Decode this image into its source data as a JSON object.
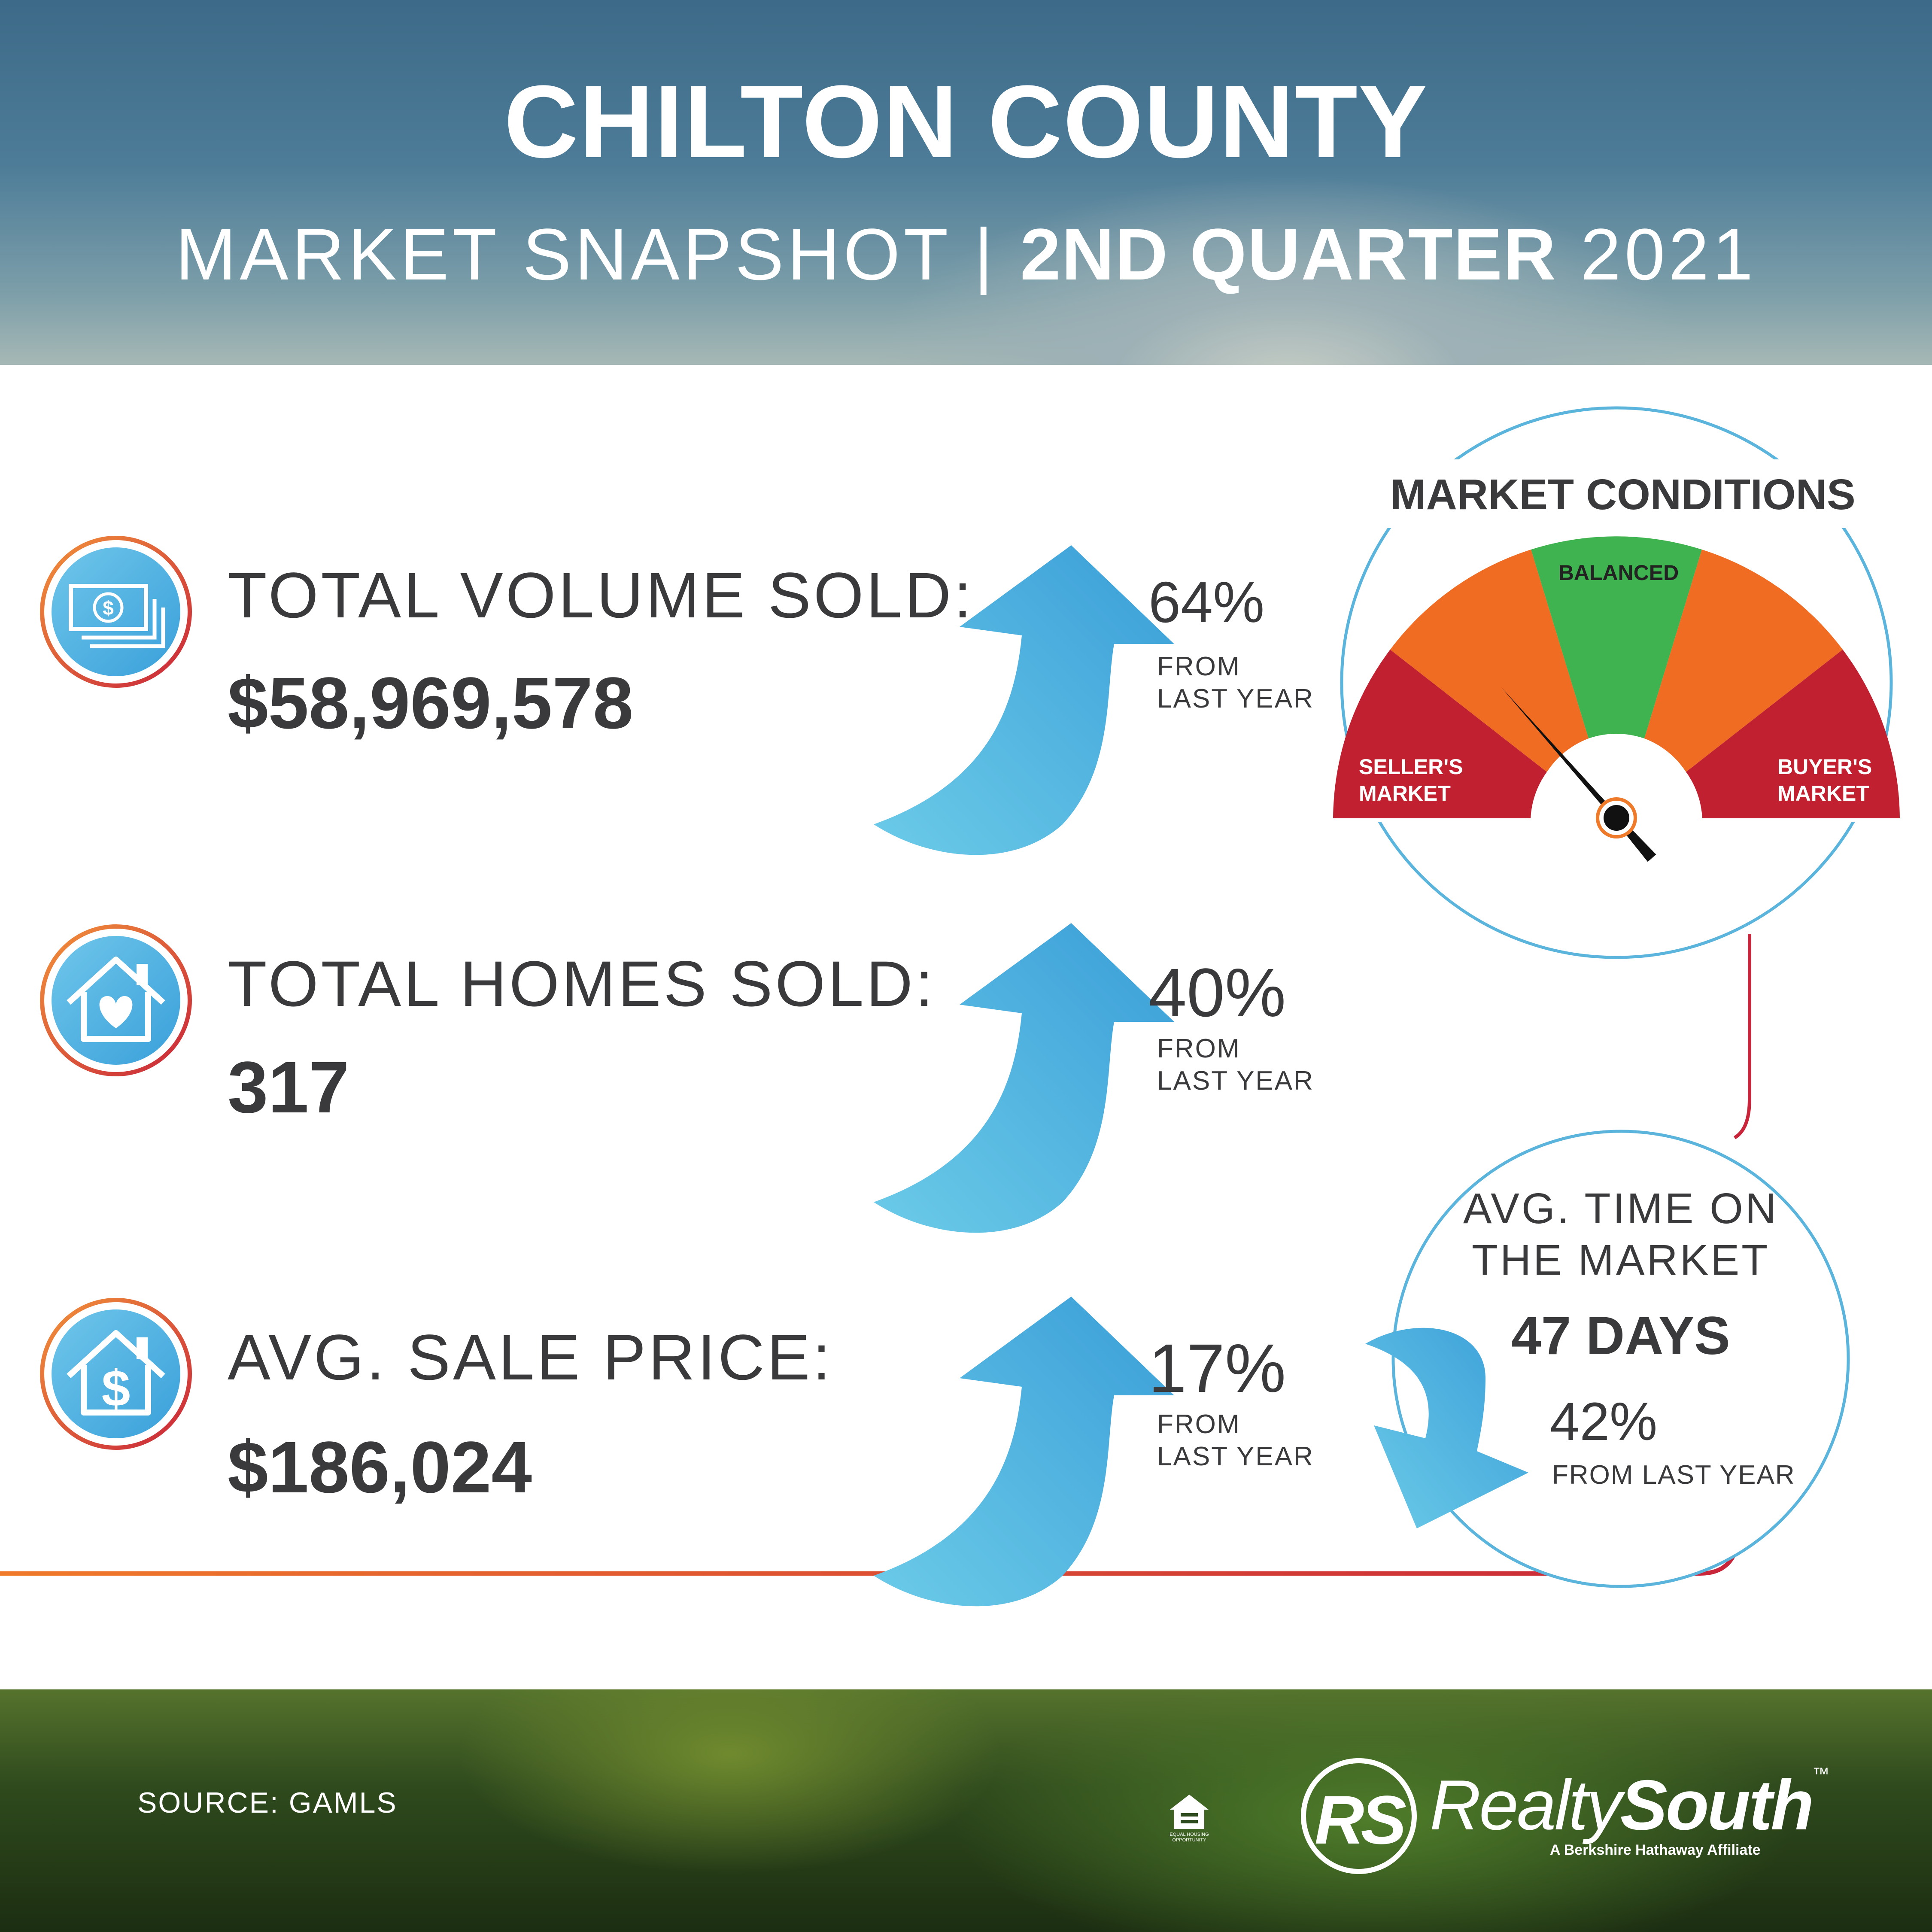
{
  "header": {
    "title": "CHILTON COUNTY",
    "subtitle_light": "MARKET SNAPSHOT | ",
    "subtitle_bold": "2ND QUARTER",
    "subtitle_year": " 2021"
  },
  "stats": [
    {
      "label": "TOTAL VOLUME SOLD:",
      "value": "$58,969,578",
      "change": "64%",
      "change_line1": "FROM",
      "change_line2": "LAST YEAR",
      "direction": "up",
      "icon": "money-bill-icon"
    },
    {
      "label": "TOTAL HOMES SOLD:",
      "value": "317",
      "change": "40%",
      "change_line1": "FROM",
      "change_line2": "LAST YEAR",
      "direction": "up",
      "icon": "house-heart-icon"
    },
    {
      "label": "AVG. SALE PRICE:",
      "value": "$186,024",
      "change": "17%",
      "change_line1": "FROM",
      "change_line2": "LAST YEAR",
      "direction": "up",
      "icon": "house-dollar-icon"
    }
  ],
  "market_conditions": {
    "title": "MARKET CONDITIONS",
    "left_label_1": "SELLER'S",
    "left_label_2": "MARKET",
    "center_label": "BALANCED",
    "right_label_1": "BUYER'S",
    "right_label_2": "MARKET",
    "needle_position": 0.27,
    "colors": {
      "red": "#c0202f",
      "orange": "#ef6c22",
      "green": "#3fb34f"
    }
  },
  "time_on_market": {
    "line1": "AVG. TIME ON",
    "line2": "THE MARKET",
    "value": "47 DAYS",
    "change": "42%",
    "change_text": "FROM LAST YEAR",
    "direction": "down"
  },
  "footer": {
    "source": "SOURCE: GAMLS",
    "brand_rs": "RS",
    "brand_realty": "Realty",
    "brand_south": "South",
    "brand_tm": "™",
    "brand_tagline": "A Berkshire Hathaway Affiliate",
    "eho_text_1": "EQUAL HOUSING",
    "eho_text_2": "OPPORTUNITY"
  },
  "colors": {
    "accent_blue": "#3aa7dc",
    "line_orange": "#ef7a2a",
    "line_red": "#c8243a",
    "text_dark": "#3a3a3c"
  }
}
